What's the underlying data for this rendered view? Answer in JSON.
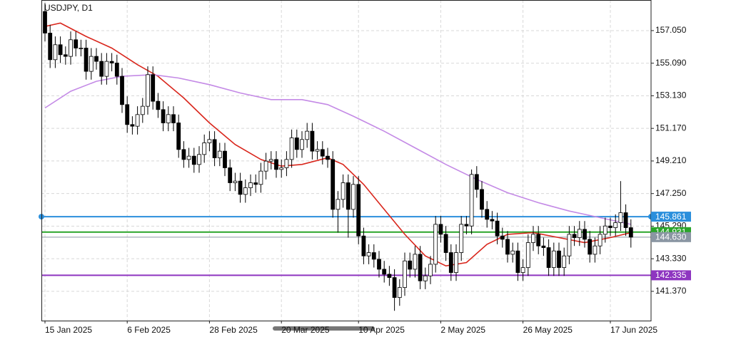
{
  "chart_data": {
    "type": "candlestick",
    "title": "USDJPY, D1",
    "categories": [
      "15 Jan 2025",
      null,
      null,
      null,
      null,
      null,
      null,
      null,
      null,
      null,
      null,
      null,
      null,
      null,
      null,
      null,
      "6 Feb 2025",
      null,
      null,
      null,
      null,
      null,
      null,
      null,
      null,
      null,
      null,
      null,
      null,
      null,
      null,
      null,
      "28 Feb 2025",
      null,
      null,
      null,
      null,
      null,
      null,
      null,
      null,
      null,
      null,
      null,
      null,
      null,
      "20 Mar 2025",
      null,
      null,
      null,
      null,
      null,
      null,
      null,
      null,
      null,
      null,
      null,
      null,
      null,
      null,
      "10 Apr 2025",
      null,
      null,
      null,
      null,
      null,
      null,
      null,
      null,
      null,
      null,
      null,
      null,
      null,
      null,
      null,
      "2 May 2025",
      null,
      null,
      null,
      null,
      null,
      null,
      null,
      null,
      null,
      null,
      null,
      null,
      null,
      null,
      null,
      "26 May 2025",
      null,
      null,
      null,
      null,
      null,
      null,
      null,
      null,
      null,
      null,
      null,
      null,
      null,
      null,
      null,
      null,
      "17 Jun 2025",
      null,
      null,
      null,
      null
    ],
    "open": [
      158.2,
      156.9,
      155.3,
      156.2,
      155.6,
      155.5,
      156.5,
      156.0,
      156.0,
      154.6,
      155.5,
      155.2,
      154.3,
      155.2,
      155.1,
      154.3,
      152.6,
      151.4,
      151.3,
      152.0,
      152.5,
      154.4,
      152.8,
      152.3,
      151.5,
      152.0,
      151.5,
      149.9,
      149.3,
      149.5,
      149.0,
      149.6,
      150.3,
      150.5,
      149.4,
      149.8,
      148.8,
      147.9,
      148.0,
      147.2,
      147.6,
      147.9,
      147.8,
      148.6,
      149.2,
      149.3,
      148.7,
      148.8,
      149.3,
      150.6,
      149.9,
      150.5,
      151.0,
      149.8,
      149.9,
      149.5,
      149.3,
      146.3,
      146.9,
      147.9,
      146.3,
      147.8,
      144.7,
      143.5,
      143.7,
      143.3,
      142.7,
      142.4,
      142.2,
      141.0,
      141.6,
      143.2,
      142.7,
      143.6,
      142.0,
      142.3,
      143.0,
      145.4,
      144.8,
      143.7,
      142.5,
      143.7,
      145.4,
      145.3,
      148.4,
      147.5,
      146.3,
      145.7,
      145.6,
      144.7,
      144.5,
      143.6,
      143.8,
      142.5,
      142.8,
      144.3,
      144.8,
      144.1,
      144.0,
      142.8,
      143.8,
      142.8,
      143.5,
      144.8,
      144.6,
      145.1,
      144.5,
      143.6,
      144.1,
      144.8,
      145.3,
      145.2,
      145.5,
      146.1,
      145.2
    ],
    "high": [
      158.7,
      157.4,
      156.7,
      156.7,
      156.1,
      157.0,
      157.0,
      156.5,
      156.5,
      156.0,
      156.0,
      155.7,
      155.7,
      155.7,
      155.6,
      154.8,
      153.1,
      151.9,
      152.5,
      153.0,
      154.9,
      154.9,
      153.3,
      152.8,
      152.5,
      152.5,
      152.0,
      150.4,
      150.0,
      150.0,
      150.1,
      150.8,
      151.0,
      151.0,
      150.3,
      150.3,
      149.3,
      148.5,
      148.5,
      148.1,
      148.4,
      148.4,
      149.1,
      149.7,
      149.8,
      149.8,
      149.3,
      149.8,
      151.1,
      151.1,
      151.0,
      151.5,
      151.5,
      150.4,
      150.4,
      150.0,
      149.8,
      147.4,
      148.4,
      148.4,
      148.3,
      148.3,
      145.2,
      144.2,
      144.2,
      143.8,
      143.2,
      142.9,
      142.7,
      142.1,
      143.7,
      143.7,
      144.1,
      144.1,
      142.8,
      143.5,
      145.9,
      145.9,
      145.3,
      144.2,
      144.2,
      145.9,
      145.9,
      148.7,
      148.9,
      148.0,
      146.8,
      146.2,
      146.1,
      145.2,
      145.0,
      144.3,
      144.3,
      143.3,
      144.8,
      145.3,
      145.3,
      144.6,
      144.5,
      144.3,
      144.3,
      144.0,
      145.3,
      145.3,
      145.6,
      145.6,
      145.0,
      144.6,
      145.3,
      145.8,
      145.8,
      146.0,
      148.0,
      146.6,
      145.7
    ],
    "low": [
      156.4,
      154.8,
      154.8,
      155.1,
      155.0,
      155.0,
      155.5,
      155.5,
      154.1,
      154.1,
      154.7,
      153.8,
      153.8,
      154.6,
      153.8,
      152.1,
      150.9,
      150.8,
      150.8,
      151.5,
      152.0,
      152.3,
      151.8,
      151.0,
      151.0,
      151.0,
      149.4,
      148.8,
      148.8,
      148.5,
      148.5,
      149.1,
      149.8,
      148.9,
      148.9,
      148.3,
      147.4,
      147.4,
      146.7,
      146.7,
      147.1,
      147.3,
      147.3,
      148.1,
      148.7,
      148.2,
      148.2,
      148.3,
      148.8,
      149.4,
      149.4,
      150.0,
      149.3,
      149.3,
      149.0,
      148.8,
      145.8,
      144.9,
      146.4,
      144.6,
      145.8,
      144.2,
      143.0,
      143.0,
      142.8,
      142.2,
      141.9,
      141.7,
      140.2,
      140.5,
      141.1,
      142.2,
      142.2,
      141.5,
      141.5,
      141.8,
      142.5,
      144.3,
      143.2,
      142.0,
      142.0,
      143.2,
      144.8,
      144.8,
      147.0,
      145.8,
      145.2,
      145.1,
      144.2,
      144.0,
      143.1,
      143.1,
      142.0,
      142.0,
      142.3,
      143.8,
      143.6,
      143.5,
      142.3,
      142.3,
      142.3,
      142.3,
      143.0,
      144.1,
      144.1,
      144.0,
      143.1,
      143.1,
      143.6,
      144.3,
      144.7,
      144.7,
      145.0,
      144.7,
      144.0
    ],
    "close": [
      156.9,
      155.3,
      156.2,
      155.6,
      155.5,
      156.5,
      156.0,
      156.0,
      154.6,
      155.5,
      155.2,
      154.3,
      155.2,
      155.1,
      154.3,
      152.6,
      151.4,
      151.3,
      152.0,
      152.5,
      154.4,
      152.8,
      152.3,
      151.5,
      152.0,
      151.5,
      149.9,
      149.3,
      149.5,
      149.0,
      149.6,
      150.3,
      150.5,
      149.4,
      149.8,
      148.8,
      147.9,
      148.0,
      147.2,
      147.6,
      147.9,
      147.8,
      148.6,
      149.2,
      149.3,
      148.7,
      148.8,
      149.3,
      150.6,
      149.9,
      150.5,
      151.0,
      149.8,
      149.9,
      149.5,
      149.3,
      146.3,
      146.9,
      147.9,
      146.3,
      147.8,
      144.7,
      143.5,
      143.7,
      143.3,
      142.7,
      142.4,
      142.2,
      141.0,
      141.6,
      143.2,
      142.7,
      143.6,
      142.0,
      142.3,
      143.0,
      145.4,
      144.8,
      143.7,
      142.5,
      143.7,
      145.4,
      145.3,
      148.4,
      147.5,
      146.3,
      145.7,
      145.6,
      144.7,
      144.5,
      143.6,
      143.8,
      142.5,
      142.8,
      144.3,
      144.8,
      144.1,
      144.0,
      142.8,
      143.8,
      142.8,
      143.5,
      144.8,
      144.6,
      145.1,
      144.5,
      143.6,
      144.1,
      144.8,
      145.3,
      145.2,
      145.5,
      146.1,
      145.2,
      144.63
    ],
    "lines": [
      {
        "color": "#d9261c",
        "x": [
          0,
          3,
          8,
          13,
          18,
          22,
          27,
          32,
          37,
          42,
          46,
          50,
          55,
          58,
          62,
          66,
          70,
          74,
          78,
          82,
          86,
          90,
          95,
          100,
          105,
          110,
          114
        ],
        "values": [
          157.3,
          157.5,
          156.7,
          156.0,
          155.0,
          154.3,
          153.0,
          151.5,
          150.2,
          149.3,
          148.9,
          149.0,
          149.4,
          149.0,
          147.8,
          146.3,
          144.8,
          143.5,
          142.9,
          143.1,
          144.2,
          144.8,
          144.9,
          144.6,
          144.3,
          144.6,
          144.9
        ]
      },
      {
        "color": "#c48ae6",
        "x": [
          0,
          5,
          10,
          15,
          21,
          26,
          32,
          38,
          44,
          50,
          55,
          60,
          66,
          72,
          78,
          84,
          90,
          96,
          102,
          108,
          114
        ],
        "values": [
          152.4,
          153.4,
          154.0,
          154.3,
          154.4,
          154.2,
          153.8,
          153.3,
          152.9,
          152.9,
          152.6,
          151.9,
          151.0,
          150.0,
          149.0,
          148.1,
          147.3,
          146.7,
          146.2,
          145.8,
          145.4
        ]
      }
    ],
    "levels": [
      {
        "value": 145.861,
        "color": "#2b8fdc",
        "width": 2
      },
      {
        "value": 144.931,
        "color": "#2aa52a",
        "width": 2
      },
      {
        "value": {
          "value": 144.63,
          "label": "144.630"
        },
        "color": "#8a96a3",
        "width": 1
      },
      {
        "value": 142.335,
        "color": "#8e35c0",
        "width": 2
      }
    ],
    "ylim": [
      139.61,
      158.89
    ],
    "yticks": [
      {
        "value": 157.05,
        "label": "157.050"
      },
      {
        "value": 155.09,
        "label": "155.090"
      },
      {
        "value": 153.13,
        "label": "153.130"
      },
      {
        "value": 151.17,
        "label": "151.170"
      },
      {
        "value": 149.21,
        "label": "149.210"
      },
      {
        "value": 147.25,
        "label": "147.250"
      },
      {
        "value": 145.29,
        "label": "145.290"
      },
      {
        "value": 143.33,
        "label": "143.330"
      },
      {
        "value": 141.37,
        "label": "141.370"
      }
    ],
    "grid": true
  }
}
